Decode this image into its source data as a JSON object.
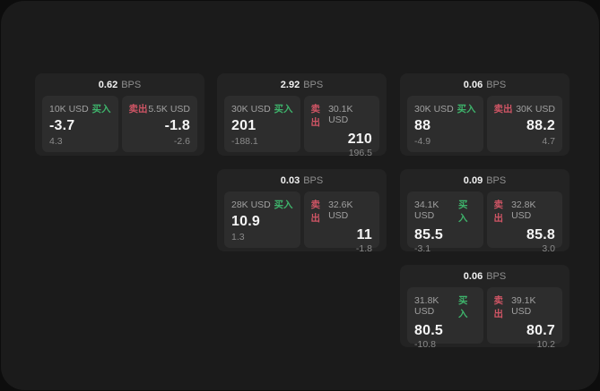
{
  "theme": {
    "outer_bg": "#0d0d0d",
    "page_bg": "#1b1b1b",
    "card_bg": "#232323",
    "panel_bg": "#2d2d2d",
    "text_primary": "#f5f5f5",
    "text_secondary": "#9c9c9c",
    "buy_green": "#3eb36b",
    "sell_red": "#cf5565"
  },
  "labels": {
    "bps_unit": "BPS",
    "buy": "买入",
    "sell": "卖出"
  },
  "cards": [
    {
      "bps": "0.62",
      "buy": {
        "amount": "10K USD",
        "value": "-3.7",
        "delta": "4.3"
      },
      "sell": {
        "amount": "5.5K USD",
        "value": "-1.8",
        "delta": "-2.6"
      }
    },
    {
      "bps": "2.92",
      "buy": {
        "amount": "30K USD",
        "value": "201",
        "delta": "-188.1"
      },
      "sell": {
        "amount": "30.1K USD",
        "value": "210",
        "delta": "196.5"
      }
    },
    {
      "bps": "0.06",
      "buy": {
        "amount": "30K USD",
        "value": "88",
        "delta": "-4.9"
      },
      "sell": {
        "amount": "30K USD",
        "value": "88.2",
        "delta": "4.7"
      }
    },
    {
      "bps": "0.03",
      "buy": {
        "amount": "28K USD",
        "value": "10.9",
        "delta": "1.3"
      },
      "sell": {
        "amount": "32.6K USD",
        "value": "11",
        "delta": "-1.8"
      }
    },
    {
      "bps": "0.09",
      "buy": {
        "amount": "34.1K USD",
        "value": "85.5",
        "delta": "-3.1"
      },
      "sell": {
        "amount": "32.8K USD",
        "value": "85.8",
        "delta": "3.0"
      }
    },
    {
      "bps": "0.06",
      "buy": {
        "amount": "31.8K USD",
        "value": "80.5",
        "delta": "-10.8"
      },
      "sell": {
        "amount": "39.1K USD",
        "value": "80.7",
        "delta": "10.2"
      }
    }
  ]
}
